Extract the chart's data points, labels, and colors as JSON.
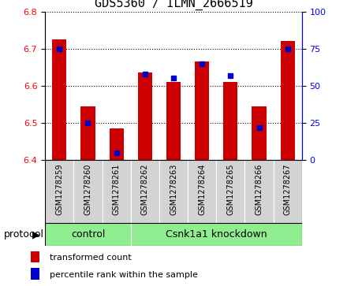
{
  "title": "GDS5360 / ILMN_2666519",
  "samples": [
    "GSM1278259",
    "GSM1278260",
    "GSM1278261",
    "GSM1278262",
    "GSM1278263",
    "GSM1278264",
    "GSM1278265",
    "GSM1278266",
    "GSM1278267"
  ],
  "transformed_count": [
    6.725,
    6.545,
    6.485,
    6.635,
    6.61,
    6.665,
    6.61,
    6.545,
    6.72
  ],
  "percentile_rank": [
    75,
    25,
    5,
    58,
    55,
    65,
    57,
    22,
    75
  ],
  "ylim_left": [
    6.4,
    6.8
  ],
  "ylim_right": [
    0,
    100
  ],
  "yticks_left": [
    6.4,
    6.5,
    6.6,
    6.7,
    6.8
  ],
  "yticks_right": [
    0,
    25,
    50,
    75,
    100
  ],
  "bar_color": "#cc0000",
  "dot_color": "#0000cc",
  "bar_width": 0.5,
  "groups": [
    {
      "label": "control",
      "start": 0,
      "end": 3
    },
    {
      "label": "Csnk1a1 knockdown",
      "start": 3,
      "end": 9
    }
  ],
  "protocol_label": "protocol",
  "group_bg_color": "#90ee90",
  "tick_bg_color": "#d3d3d3",
  "title_fontsize": 11,
  "tick_fontsize": 8,
  "legend_fontsize": 8,
  "sample_fontsize": 7,
  "group_fontsize": 9,
  "protocol_fontsize": 9
}
